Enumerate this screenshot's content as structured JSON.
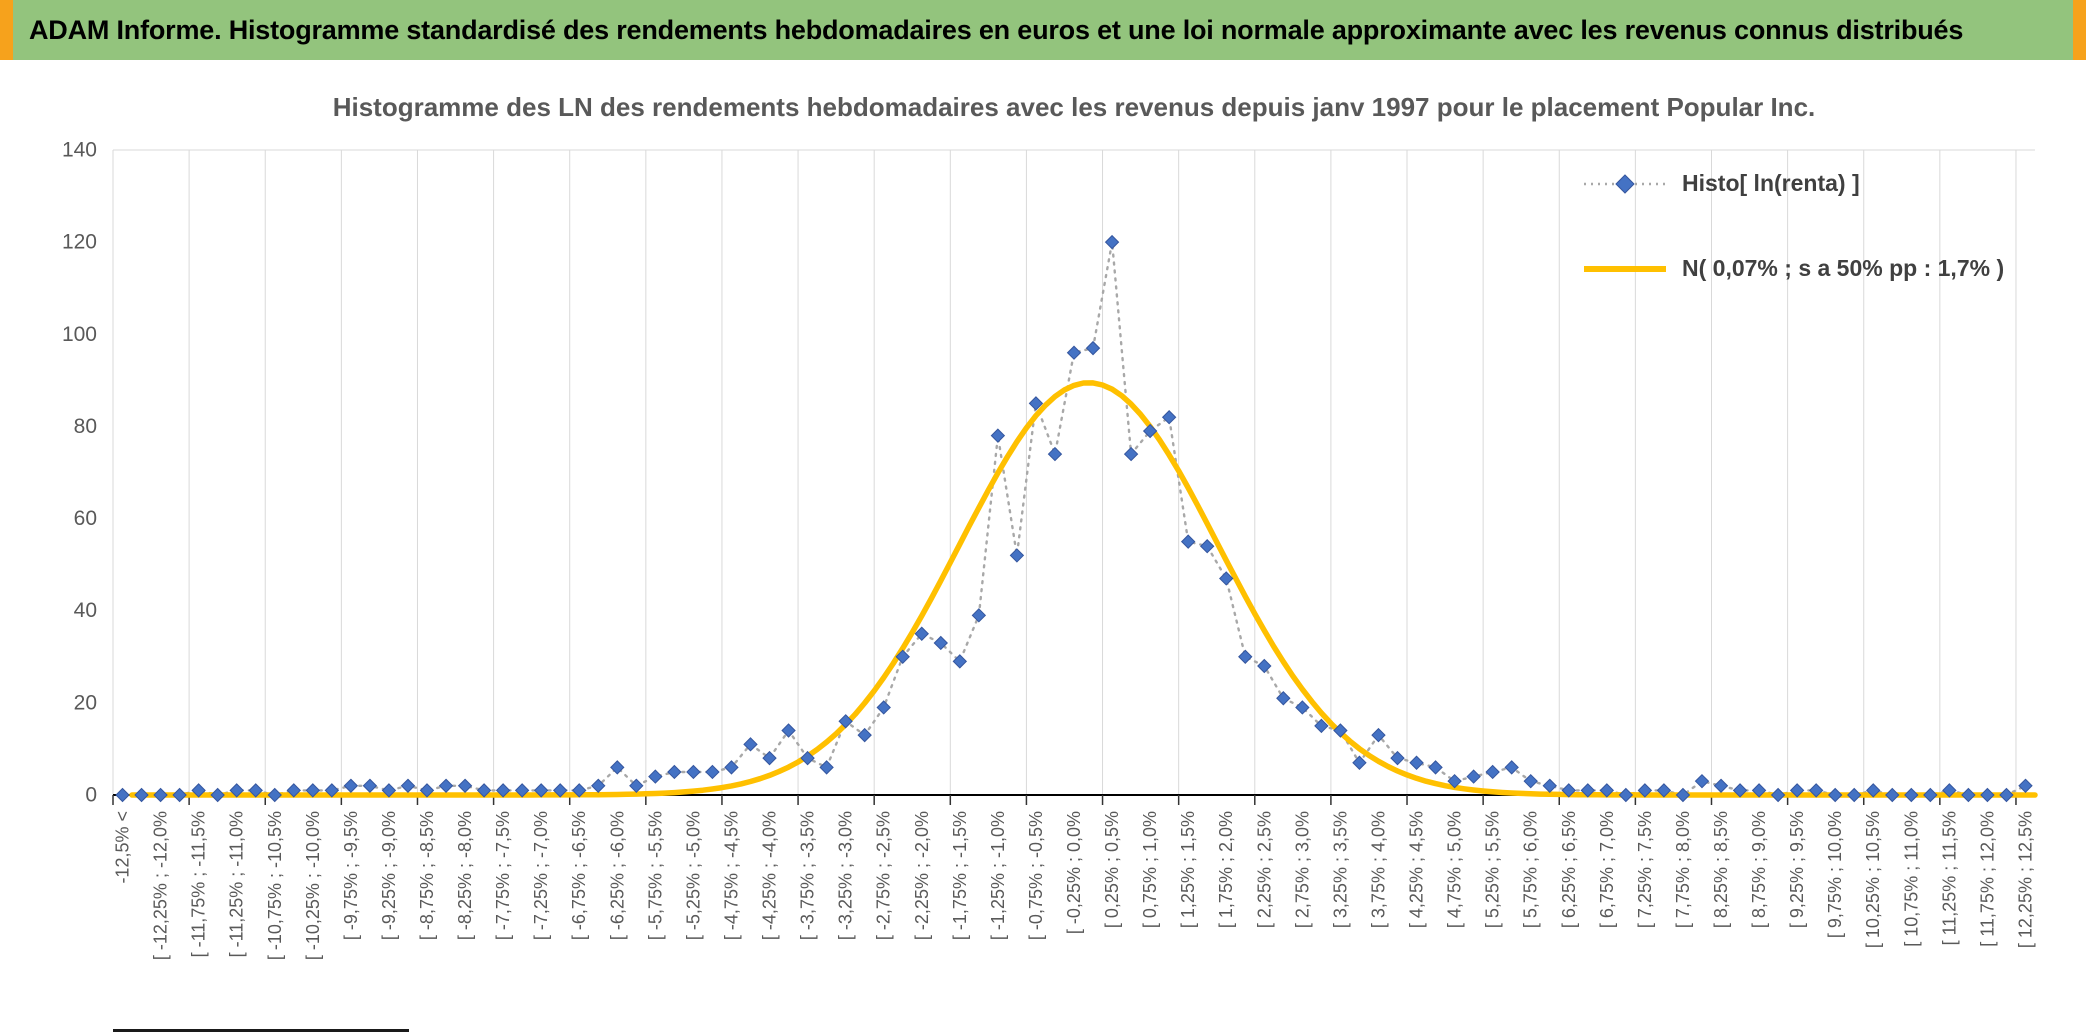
{
  "header": {
    "title": "ADAM Informe. Histogramme standardisé des rendements hebdomadaires en euros et une loi normale approximante avec les revenus connus distribués",
    "bar_color": "#93C47D",
    "accent_color": "#F6A21C"
  },
  "chart_data": {
    "type": "line",
    "title": "Histogramme des LN des rendements hebdomadaires avec les revenus depuis janv 1997 pour le placement Popular Inc.",
    "xlabel": "",
    "ylabel": "",
    "ylim": [
      0,
      140
    ],
    "y_ticks": [
      0,
      20,
      40,
      60,
      80,
      100,
      120,
      140
    ],
    "grid": "vertical-only",
    "legend_position": "top-right",
    "bins": {
      "min_pct": -12.5,
      "max_pct": 12.5,
      "width_pct": 0.25,
      "underflow_label": "-12,5% <"
    },
    "x_label_every": 2,
    "x_labels": [
      "-12,5% <",
      "[ -12,25% ; -12,0%",
      "[ -11,75% ; -11,5%",
      "[ -11,25% ; -11,0%",
      "[ -10,75% ; -10,5%",
      "[ -10,25% ; -10,0%",
      "[ -9,75% ; -9,5%",
      "[ -9,25% ; -9,0%",
      "[ -8,75% ; -8,5%",
      "[ -8,25% ; -8,0%",
      "[ -7,75% ; -7,5%",
      "[ -7,25% ; -7,0%",
      "[ -6,75% ; -6,5%",
      "[ -6,25% ; -6,0%",
      "[ -5,75% ; -5,5%",
      "[ -5,25% ; -5,0%",
      "[ -4,75% ; -4,5%",
      "[ -4,25% ; -4,0%",
      "[ -3,75% ; -3,5%",
      "[ -3,25% ; -3,0%",
      "[ -2,75% ; -2,5%",
      "[ -2,25% ; -2,0%",
      "[ -1,75% ; -1,5%",
      "[ -1,25% ; -1,0%",
      "[ -0,75% ; -0,5%",
      "[ -0,25% ; 0,0%",
      "[ 0,25% ; 0,5%",
      "[ 0,75% ; 1,0%",
      "[ 1,25% ; 1,5%",
      "[ 1,75% ; 2,0%",
      "[ 2,25% ; 2,5%",
      "[ 2,75% ; 3,0%",
      "[ 3,25% ; 3,5%",
      "[ 3,75% ; 4,0%",
      "[ 4,25% ; 4,5%",
      "[ 4,75% ; 5,0%",
      "[ 5,25% ; 5,5%",
      "[ 5,75% ; 6,0%",
      "[ 6,25% ; 6,5%",
      "[ 6,75% ; 7,0%",
      "[ 7,25% ; 7,5%",
      "[ 7,75% ; 8,0%",
      "[ 8,25% ; 8,5%",
      "[ 8,75% ; 9,0%",
      "[ 9,25% ; 9,5%",
      "[ 9,75% ; 10,0%",
      "[ 10,25% ; 10,5%",
      "[ 10,75% ; 11,0%",
      "[ 11,25% ; 11,5%",
      "[ 11,75% ; 12,0%",
      "[ 12,25% ; 12,5%"
    ],
    "series": [
      {
        "name": "Histo[ ln(renta) ]",
        "type": "scatter-dotted-line",
        "marker": "diamond",
        "color": "#4472C4",
        "marker_stroke": "#35569E",
        "line_color": "#A8A8A8",
        "values": [
          0,
          0,
          0,
          0,
          1,
          0,
          1,
          1,
          0,
          1,
          1,
          1,
          2,
          2,
          1,
          2,
          1,
          2,
          2,
          1,
          1,
          1,
          1,
          1,
          1,
          2,
          6,
          2,
          4,
          5,
          5,
          5,
          6,
          11,
          8,
          14,
          8,
          6,
          16,
          13,
          19,
          30,
          35,
          33,
          29,
          39,
          78,
          52,
          85,
          74,
          96,
          97,
          120,
          74,
          79,
          82,
          55,
          54,
          47,
          30,
          28,
          21,
          19,
          15,
          14,
          7,
          13,
          8,
          7,
          6,
          3,
          4,
          5,
          6,
          3,
          2,
          1,
          1,
          1,
          0,
          1,
          1,
          0,
          3,
          2,
          1,
          1,
          0,
          1,
          1,
          0,
          0,
          1,
          0,
          0,
          0,
          1,
          0,
          0,
          0,
          2
        ]
      },
      {
        "name": "N( 0,07% ; s a 50% pp : 1,7% )",
        "type": "normal-curve",
        "color": "#FFC000",
        "mean_pct": 0.07,
        "sd_pct": 1.7,
        "peak": 89.5
      }
    ]
  }
}
